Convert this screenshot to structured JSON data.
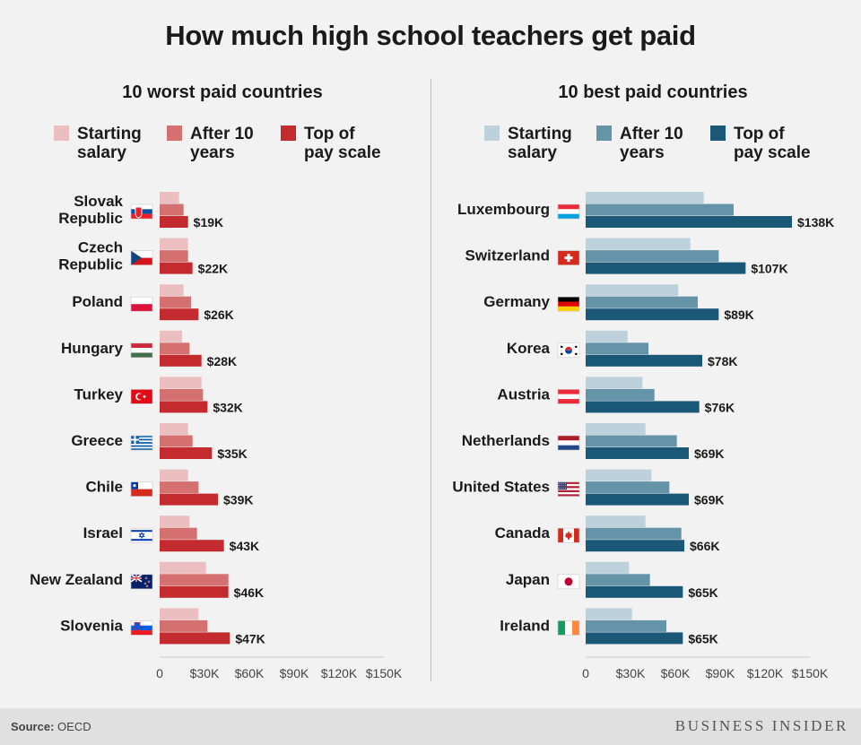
{
  "title": "How much high school teachers get paid",
  "footer": {
    "source_label": "Source:",
    "source_value": "OECD",
    "brand": "BUSINESS INSIDER"
  },
  "legend_labels": {
    "starting": [
      "Starting",
      "salary"
    ],
    "after10": [
      "After 10",
      "years"
    ],
    "top": [
      "Top of",
      "pay scale"
    ]
  },
  "chart_data": [
    {
      "type": "bar",
      "title": "10 worst paid countries",
      "categories": [
        "Slovak Republic",
        "Czech Republic",
        "Poland",
        "Hungary",
        "Turkey",
        "Greece",
        "Chile",
        "Israel",
        "New Zealand",
        "Slovenia"
      ],
      "category_lines": [
        [
          "Slovak",
          "Republic"
        ],
        [
          "Czech",
          "Republic"
        ],
        [
          "Poland"
        ],
        [
          "Hungary"
        ],
        [
          "Turkey"
        ],
        [
          "Greece"
        ],
        [
          "Chile"
        ],
        [
          "Israel"
        ],
        [
          "New Zealand"
        ],
        [
          "Slovenia"
        ]
      ],
      "flags": [
        "slovakia-flag",
        "czech-flag",
        "poland-flag",
        "hungary-flag",
        "turkey-flag",
        "greece-flag",
        "chile-flag",
        "israel-flag",
        "new-zealand-flag",
        "slovenia-flag"
      ],
      "series": [
        {
          "name": "Starting salary",
          "key": "starting",
          "color": "#ebbfc0",
          "values": [
            13,
            19,
            16,
            15,
            28,
            19,
            19,
            20,
            31,
            26
          ]
        },
        {
          "name": "After 10 years",
          "key": "after10",
          "color": "#d4706f",
          "values": [
            16,
            19,
            21,
            20,
            29,
            22,
            26,
            25,
            46,
            32
          ]
        },
        {
          "name": "Top of pay scale",
          "key": "top",
          "color": "#c42b2f",
          "values": [
            19,
            22,
            26,
            28,
            32,
            35,
            39,
            43,
            46,
            47
          ]
        }
      ],
      "value_labels": [
        "$19K",
        "$22K",
        "$26K",
        "$28K",
        "$32K",
        "$35K",
        "$39K",
        "$43K",
        "$46K",
        "$47K"
      ],
      "xticks": [
        "0",
        "$30K",
        "$60K",
        "$90K",
        "$120K",
        "$150K"
      ],
      "xlim": [
        0,
        150
      ],
      "unit": "thousand USD"
    },
    {
      "type": "bar",
      "title": "10 best paid countries",
      "categories": [
        "Luxembourg",
        "Switzerland",
        "Germany",
        "Korea",
        "Austria",
        "Netherlands",
        "United States",
        "Canada",
        "Japan",
        "Ireland"
      ],
      "category_lines": [
        [
          "Luxembourg"
        ],
        [
          "Switzerland"
        ],
        [
          "Germany"
        ],
        [
          "Korea"
        ],
        [
          "Austria"
        ],
        [
          "Netherlands"
        ],
        [
          "United States"
        ],
        [
          "Canada"
        ],
        [
          "Japan"
        ],
        [
          "Ireland"
        ]
      ],
      "flags": [
        "luxembourg-flag",
        "switzerland-flag",
        "germany-flag",
        "korea-flag",
        "austria-flag",
        "netherlands-flag",
        "united-states-flag",
        "canada-flag",
        "japan-flag",
        "ireland-flag"
      ],
      "series": [
        {
          "name": "Starting salary",
          "key": "starting",
          "color": "#bcd1dc",
          "values": [
            79,
            70,
            62,
            28,
            38,
            40,
            44,
            40,
            29,
            31
          ]
        },
        {
          "name": "After 10 years",
          "key": "after10",
          "color": "#6593a8",
          "values": [
            99,
            89,
            75,
            42,
            46,
            61,
            56,
            64,
            43,
            54
          ]
        },
        {
          "name": "Top of pay scale",
          "key": "top",
          "color": "#1b5878",
          "values": [
            138,
            107,
            89,
            78,
            76,
            69,
            69,
            66,
            65,
            65
          ]
        }
      ],
      "value_labels": [
        "$138K",
        "$107K",
        "$89K",
        "$78K",
        "$76K",
        "$69K",
        "$69K",
        "$66K",
        "$65K",
        "$65K"
      ],
      "xticks": [
        "0",
        "$30K",
        "$60K",
        "$90K",
        "$120K",
        "$150K"
      ],
      "xlim": [
        0,
        150
      ],
      "unit": "thousand USD"
    }
  ]
}
